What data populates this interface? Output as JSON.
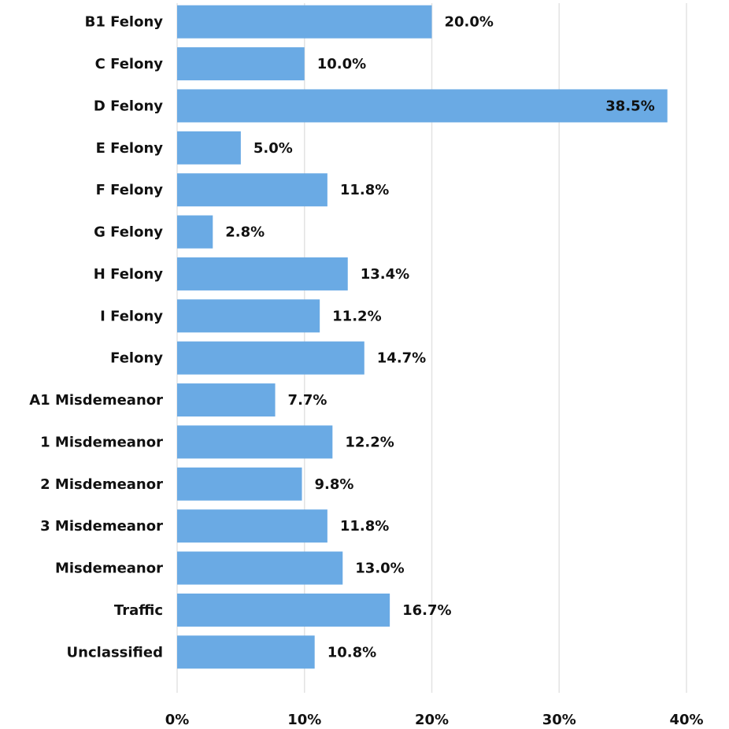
{
  "chart_data": {
    "type": "barh",
    "categories": [
      "B1 Felony",
      "C Felony",
      "D Felony",
      "E Felony",
      "F Felony",
      "G Felony",
      "H Felony",
      "I Felony",
      "Felony",
      "A1 Misdemeanor",
      "1 Misdemeanor",
      "2 Misdemeanor",
      "3 Misdemeanor",
      "Misdemeanor",
      "Traffic",
      "Unclassified"
    ],
    "values": [
      20.0,
      10.0,
      38.5,
      5.0,
      11.8,
      2.8,
      13.4,
      11.2,
      14.7,
      7.7,
      12.2,
      9.8,
      11.8,
      13.0,
      16.7,
      10.8
    ],
    "value_labels": [
      "20.0%",
      "10.0%",
      "38.5%",
      "5.0%",
      "11.8%",
      "2.8%",
      "13.4%",
      "11.2%",
      "14.7%",
      "7.7%",
      "12.2%",
      "9.8%",
      "11.8%",
      "13.0%",
      "16.7%",
      "10.8%"
    ],
    "color": "#6aaae4",
    "xlim": [
      0,
      40
    ],
    "xticks": [
      {
        "value": 0,
        "label": "0%"
      },
      {
        "value": 10,
        "label": "10%"
      },
      {
        "value": 20,
        "label": "20%"
      },
      {
        "value": 30,
        "label": "30%"
      },
      {
        "value": 40,
        "label": "40%"
      }
    ],
    "grid": true
  }
}
